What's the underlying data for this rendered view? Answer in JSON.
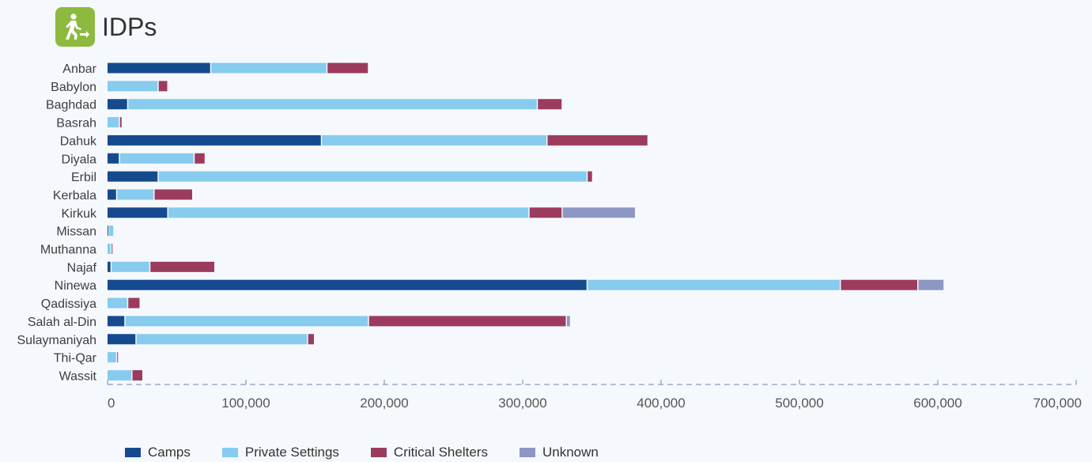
{
  "header": {
    "title": "IDPs",
    "icon": "walking-person-exit-icon",
    "icon_color": "#8dba3e"
  },
  "chart_data": {
    "type": "bar",
    "orientation": "horizontal",
    "stacked": true,
    "title": "IDPs",
    "categories": [
      "Anbar",
      "Babylon",
      "Baghdad",
      "Basrah",
      "Dahuk",
      "Diyala",
      "Erbil",
      "Kerbala",
      "Kirkuk",
      "Missan",
      "Muthanna",
      "Najaf",
      "Ninewa",
      "Qadissiya",
      "Salah al-Din",
      "Sulaymaniyah",
      "Thi-Qar",
      "Wassit"
    ],
    "series": [
      {
        "name": "Camps",
        "color": "#154a8e",
        "values": [
          75000,
          0,
          15000,
          0,
          155000,
          9000,
          37000,
          7000,
          44000,
          1000,
          0,
          3000,
          347000,
          0,
          13000,
          21000,
          0,
          0
        ]
      },
      {
        "name": "Private Settings",
        "color": "#87cbee",
        "values": [
          84000,
          37000,
          296000,
          9000,
          163000,
          54000,
          310000,
          27000,
          261000,
          4000,
          3000,
          28000,
          183000,
          15000,
          176000,
          124000,
          7000,
          18000
        ]
      },
      {
        "name": "Critical Shelters",
        "color": "#9c3b5e",
        "values": [
          30000,
          7000,
          18000,
          2000,
          73000,
          8000,
          4000,
          28000,
          24000,
          0,
          1000,
          47000,
          56000,
          9000,
          143000,
          5000,
          1000,
          8000
        ]
      },
      {
        "name": "Unknown",
        "color": "#8e96c4",
        "values": [
          0,
          0,
          0,
          0,
          0,
          0,
          0,
          0,
          53000,
          0,
          0,
          0,
          19000,
          0,
          3000,
          0,
          0,
          0
        ]
      }
    ],
    "xlim": [
      0,
      700000
    ],
    "xticks": [
      0,
      100000,
      200000,
      300000,
      400000,
      500000,
      600000,
      700000
    ],
    "xtick_labels": [
      "0",
      "100,000",
      "200,000",
      "300,000",
      "400,000",
      "500,000",
      "600,000",
      "700,000"
    ],
    "grid": false,
    "legend_position": "bottom-left"
  }
}
